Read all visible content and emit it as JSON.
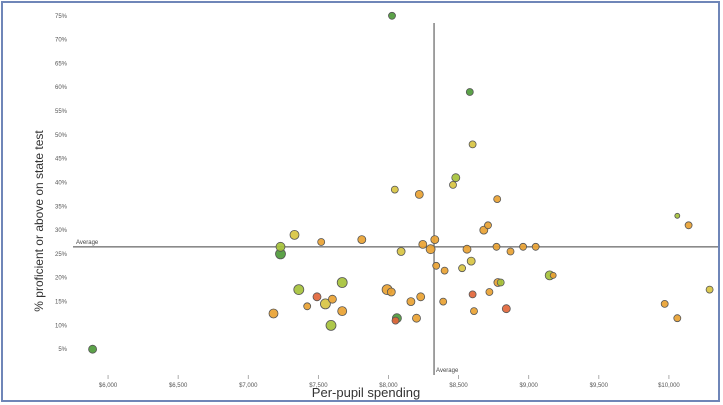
{
  "chart_data": {
    "type": "scatter",
    "xlabel": "Per-pupil spending",
    "ylabel": "% proficient or above on state test",
    "xlim": [
      5750,
      10350
    ],
    "ylim": [
      0,
      76
    ],
    "x_ticks": [
      {
        "value": 6000,
        "label": "$6,000"
      },
      {
        "value": 6500,
        "label": "$6,500"
      },
      {
        "value": 7000,
        "label": "$7,000"
      },
      {
        "value": 7500,
        "label": "$7,500"
      },
      {
        "value": 8000,
        "label": "$8,000"
      },
      {
        "value": 8500,
        "label": "$8,500"
      },
      {
        "value": 9000,
        "label": "$9,000"
      },
      {
        "value": 9500,
        "label": "$9,500"
      },
      {
        "value": 10000,
        "label": "$10,000"
      }
    ],
    "y_ticks": [
      {
        "value": 5,
        "label": "5%"
      },
      {
        "value": 10,
        "label": "10%"
      },
      {
        "value": 15,
        "label": "15%"
      },
      {
        "value": 20,
        "label": "20%"
      },
      {
        "value": 25,
        "label": "25%"
      },
      {
        "value": 30,
        "label": "30%"
      },
      {
        "value": 35,
        "label": "35%"
      },
      {
        "value": 40,
        "label": "40%"
      },
      {
        "value": 45,
        "label": "45%"
      },
      {
        "value": 50,
        "label": "50%"
      },
      {
        "value": 55,
        "label": "55%"
      },
      {
        "value": 60,
        "label": "60%"
      },
      {
        "value": 65,
        "label": "65%"
      },
      {
        "value": 70,
        "label": "70%"
      },
      {
        "value": 75,
        "label": "75%"
      }
    ],
    "avg_x": 8325,
    "avg_y": 26.5,
    "avg_x_label": "Average",
    "avg_y_label": "Average",
    "grid": false,
    "colors": {
      "green": "#4e9a3a",
      "yellowgreen": "#a6c23a",
      "yellow": "#d8c442",
      "orange": "#e9a232",
      "red": "#e2663a",
      "outline": "#555555",
      "avg_line": "#8a8a8a",
      "frame": "#6f86b8"
    },
    "points": [
      {
        "x": 5890,
        "y": 5,
        "r": 4,
        "c": "green"
      },
      {
        "x": 8025,
        "y": 75,
        "r": 3.5,
        "c": "green"
      },
      {
        "x": 8580,
        "y": 59,
        "r": 3.5,
        "c": "green"
      },
      {
        "x": 8600,
        "y": 48,
        "r": 3.5,
        "c": "yellow"
      },
      {
        "x": 8480,
        "y": 41,
        "r": 4,
        "c": "yellowgreen"
      },
      {
        "x": 8460,
        "y": 39.5,
        "r": 3.5,
        "c": "yellow"
      },
      {
        "x": 8045,
        "y": 38.5,
        "r": 3.5,
        "c": "yellow"
      },
      {
        "x": 8220,
        "y": 37.5,
        "r": 4,
        "c": "orange"
      },
      {
        "x": 8775,
        "y": 36.5,
        "r": 3.5,
        "c": "orange"
      },
      {
        "x": 7330,
        "y": 29,
        "r": 4.5,
        "c": "yellow"
      },
      {
        "x": 7520,
        "y": 27.5,
        "r": 3.5,
        "c": "orange"
      },
      {
        "x": 7810,
        "y": 28,
        "r": 4,
        "c": "orange"
      },
      {
        "x": 7230,
        "y": 25,
        "r": 5,
        "c": "green"
      },
      {
        "x": 7230,
        "y": 26.5,
        "r": 4.5,
        "c": "yellowgreen"
      },
      {
        "x": 8090,
        "y": 25.5,
        "r": 4,
        "c": "yellow"
      },
      {
        "x": 8245,
        "y": 27,
        "r": 4,
        "c": "orange"
      },
      {
        "x": 8300,
        "y": 26,
        "r": 4.5,
        "c": "orange"
      },
      {
        "x": 8330,
        "y": 28,
        "r": 4,
        "c": "orange"
      },
      {
        "x": 8560,
        "y": 26,
        "r": 4,
        "c": "orange"
      },
      {
        "x": 8680,
        "y": 30,
        "r": 4,
        "c": "orange"
      },
      {
        "x": 8710,
        "y": 31,
        "r": 3.5,
        "c": "orange"
      },
      {
        "x": 8770,
        "y": 26.5,
        "r": 3.5,
        "c": "orange"
      },
      {
        "x": 8870,
        "y": 25.5,
        "r": 3.5,
        "c": "orange"
      },
      {
        "x": 8960,
        "y": 26.5,
        "r": 3.5,
        "c": "orange"
      },
      {
        "x": 9050,
        "y": 26.5,
        "r": 3.5,
        "c": "orange"
      },
      {
        "x": 8590,
        "y": 23.5,
        "r": 4,
        "c": "yellow"
      },
      {
        "x": 8400,
        "y": 21.5,
        "r": 3.5,
        "c": "orange"
      },
      {
        "x": 8340,
        "y": 22.5,
        "r": 3.5,
        "c": "orange"
      },
      {
        "x": 8525,
        "y": 22,
        "r": 3.5,
        "c": "yellow"
      },
      {
        "x": 9150,
        "y": 20.5,
        "r": 4.5,
        "c": "yellowgreen"
      },
      {
        "x": 9175,
        "y": 20.5,
        "r": 3,
        "c": "orange"
      },
      {
        "x": 10060,
        "y": 33,
        "r": 2.5,
        "c": "yellowgreen"
      },
      {
        "x": 10140,
        "y": 31,
        "r": 3.5,
        "c": "orange"
      },
      {
        "x": 9970,
        "y": 14.5,
        "r": 3.5,
        "c": "orange"
      },
      {
        "x": 10060,
        "y": 11.5,
        "r": 3.5,
        "c": "orange"
      },
      {
        "x": 10290,
        "y": 17.5,
        "r": 3.5,
        "c": "yellow"
      },
      {
        "x": 7360,
        "y": 17.5,
        "r": 5,
        "c": "yellowgreen"
      },
      {
        "x": 7490,
        "y": 16,
        "r": 4,
        "c": "red"
      },
      {
        "x": 7550,
        "y": 14.5,
        "r": 5,
        "c": "yellow"
      },
      {
        "x": 7600,
        "y": 15.5,
        "r": 4,
        "c": "orange"
      },
      {
        "x": 7670,
        "y": 19,
        "r": 5,
        "c": "yellowgreen"
      },
      {
        "x": 7420,
        "y": 14,
        "r": 3.5,
        "c": "orange"
      },
      {
        "x": 7180,
        "y": 12.5,
        "r": 4.5,
        "c": "orange"
      },
      {
        "x": 7670,
        "y": 13,
        "r": 4.5,
        "c": "orange"
      },
      {
        "x": 7590,
        "y": 10,
        "r": 5,
        "c": "yellowgreen"
      },
      {
        "x": 7990,
        "y": 17.5,
        "r": 5,
        "c": "orange"
      },
      {
        "x": 8020,
        "y": 17,
        "r": 4,
        "c": "orange"
      },
      {
        "x": 8060,
        "y": 11.5,
        "r": 4.5,
        "c": "green"
      },
      {
        "x": 8050,
        "y": 11,
        "r": 3.5,
        "c": "red"
      },
      {
        "x": 8160,
        "y": 15,
        "r": 4,
        "c": "orange"
      },
      {
        "x": 8230,
        "y": 16,
        "r": 4,
        "c": "orange"
      },
      {
        "x": 8200,
        "y": 11.5,
        "r": 4,
        "c": "orange"
      },
      {
        "x": 8390,
        "y": 15,
        "r": 3.5,
        "c": "orange"
      },
      {
        "x": 8600,
        "y": 16.5,
        "r": 3.5,
        "c": "red"
      },
      {
        "x": 8720,
        "y": 17,
        "r": 3.5,
        "c": "orange"
      },
      {
        "x": 8780,
        "y": 19,
        "r": 4,
        "c": "orange"
      },
      {
        "x": 8800,
        "y": 19,
        "r": 3.5,
        "c": "yellowgreen"
      },
      {
        "x": 8610,
        "y": 13,
        "r": 3.5,
        "c": "orange"
      },
      {
        "x": 8840,
        "y": 13.5,
        "r": 4,
        "c": "red"
      }
    ]
  }
}
